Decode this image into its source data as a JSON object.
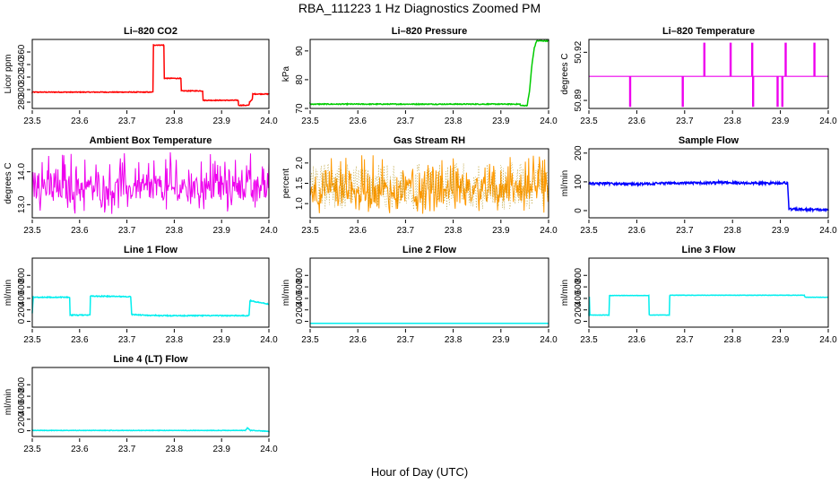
{
  "figure": {
    "title": "RBA_111223  1 Hz Diagnostics Zoomed PM",
    "xlabel": "Hour of Day (UTC)"
  },
  "chart_data": [
    {
      "type": "line",
      "title": "Li–820 CO2",
      "ylabel": "Licor ppm",
      "color": "#ff0000",
      "xlim": [
        23.5,
        24.0
      ],
      "xticks": [
        "23.5",
        "23.6",
        "23.7",
        "23.8",
        "23.9",
        "24.0"
      ],
      "ylim": [
        270,
        380
      ],
      "yticks": [
        280,
        300,
        320,
        340,
        360
      ],
      "ytick_labels": [
        "280",
        "300",
        "320",
        "340",
        "360"
      ],
      "noise": 0.6,
      "x": [
        23.5,
        23.755,
        23.756,
        23.778,
        23.779,
        23.814,
        23.815,
        23.86,
        23.861,
        23.935,
        23.936,
        23.958,
        23.959,
        23.965,
        23.966,
        24.0
      ],
      "y": [
        296,
        296,
        371,
        371,
        318,
        318,
        298,
        298,
        283,
        283,
        275,
        275,
        280,
        285,
        293,
        293
      ]
    },
    {
      "type": "line",
      "title": "Li–820 Pressure",
      "ylabel": "kPa",
      "color": "#00cc00",
      "xlim": [
        23.5,
        24.0
      ],
      "xticks": [
        "23.5",
        "23.6",
        "23.7",
        "23.8",
        "23.9",
        "24.0"
      ],
      "ylim": [
        70,
        94
      ],
      "yticks": [
        70,
        80,
        90
      ],
      "ytick_labels": [
        "70",
        "80",
        "90"
      ],
      "noise": 0.15,
      "x": [
        23.5,
        23.94,
        23.941,
        23.955,
        23.96,
        23.965,
        23.97,
        23.975,
        24.0
      ],
      "y": [
        71.5,
        71.5,
        71.0,
        71.0,
        76,
        85,
        91,
        93.5,
        93.5
      ]
    },
    {
      "type": "line",
      "title": "Li–820 Temperature",
      "ylabel": "degrees C",
      "color": "#ee00ee",
      "xlim": [
        23.5,
        24.0
      ],
      "xticks": [
        "23.5",
        "23.6",
        "23.7",
        "23.8",
        "23.9",
        "24.0"
      ],
      "ylim": [
        50.885,
        50.928
      ],
      "yticks": [
        50.89,
        50.92
      ],
      "ytick_labels": [
        "50.89",
        "50.92"
      ],
      "baseline": 50.905,
      "spikes": [
        {
          "x": 23.585,
          "y": 50.886
        },
        {
          "x": 23.695,
          "y": 50.886
        },
        {
          "x": 23.74,
          "y": 50.926
        },
        {
          "x": 23.795,
          "y": 50.926
        },
        {
          "x": 23.84,
          "y": 50.926
        },
        {
          "x": 23.842,
          "y": 50.886
        },
        {
          "x": 23.893,
          "y": 50.886
        },
        {
          "x": 23.903,
          "y": 50.886
        },
        {
          "x": 23.91,
          "y": 50.926
        },
        {
          "x": 23.97,
          "y": 50.926
        }
      ]
    },
    {
      "type": "line",
      "title": "Ambient Box Temperature",
      "ylabel": "degrees C",
      "color": "#ee00ee",
      "xlim": [
        23.5,
        24.0
      ],
      "xticks": [
        "23.5",
        "23.6",
        "23.7",
        "23.8",
        "23.9",
        "24.0"
      ],
      "ylim": [
        12.6,
        14.7
      ],
      "yticks": [
        13.0,
        14.0
      ],
      "ytick_labels": [
        "13.0",
        "14.0"
      ],
      "mean": 13.45,
      "noise_low": 12.7,
      "noise_high": 14.6
    },
    {
      "type": "line",
      "title": "Gas Stream RH",
      "ylabel": "percent",
      "color": "#ff9900",
      "xlim": [
        23.5,
        24.0
      ],
      "xticks": [
        "23.5",
        "23.6",
        "23.7",
        "23.8",
        "23.9",
        "24.0"
      ],
      "ylim": [
        0.65,
        2.35
      ],
      "yticks": [
        1.0,
        1.5,
        2.0
      ],
      "ytick_labels": [
        "1.0",
        "1.5",
        "2.0"
      ],
      "mean": 1.25,
      "noise_low": 0.75,
      "noise_high": 2.2
    },
    {
      "type": "line",
      "title": "Sample Flow",
      "ylabel": "ml/min",
      "color": "#0000ff",
      "xlim": [
        23.5,
        24.0
      ],
      "xticks": [
        "23.5",
        "23.6",
        "23.7",
        "23.8",
        "23.9",
        "24.0"
      ],
      "ylim": [
        -25,
        215
      ],
      "yticks": [
        0,
        100,
        200
      ],
      "ytick_labels": [
        "0",
        "100",
        "200"
      ],
      "noise": 4,
      "x": [
        23.5,
        23.6,
        23.65,
        23.75,
        23.77,
        23.85,
        23.915,
        23.918,
        24.0
      ],
      "y": [
        95,
        92,
        95,
        96,
        98,
        95,
        96,
        5,
        2
      ]
    },
    {
      "type": "line",
      "title": "Line 1 Flow",
      "ylabel": "ml/min",
      "color": "#00eeee",
      "xlim": [
        23.5,
        24.0
      ],
      "xticks": [
        "23.5",
        "23.6",
        "23.7",
        "23.8",
        "23.9",
        "24.0"
      ],
      "ylim": [
        -100,
        1100
      ],
      "yticks": [
        0,
        200,
        400,
        600,
        800
      ],
      "ytick_labels": [
        "0",
        "200",
        "400",
        "600",
        "800"
      ],
      "noise": 8,
      "x": [
        23.5,
        23.502,
        23.579,
        23.58,
        23.622,
        23.623,
        23.708,
        23.71,
        23.76,
        23.958,
        23.96,
        24.0
      ],
      "y": [
        150,
        420,
        420,
        110,
        110,
        440,
        430,
        120,
        100,
        100,
        360,
        300
      ]
    },
    {
      "type": "line",
      "title": "Line 2 Flow",
      "ylabel": "ml/min",
      "color": "#00eeee",
      "xlim": [
        23.5,
        24.0
      ],
      "xticks": [
        "23.5",
        "23.6",
        "23.7",
        "23.8",
        "23.9",
        "24.0"
      ],
      "ylim": [
        -100,
        1100
      ],
      "yticks": [
        0,
        200,
        400,
        600,
        800
      ],
      "ytick_labels": [
        "0",
        "200",
        "400",
        "600",
        "800"
      ],
      "noise": 0,
      "x": [
        23.5,
        24.0
      ],
      "y": [
        -35,
        -35
      ]
    },
    {
      "type": "line",
      "title": "Line 3 Flow",
      "ylabel": "ml/min",
      "color": "#00eeee",
      "xlim": [
        23.5,
        24.0
      ],
      "xticks": [
        "23.5",
        "23.6",
        "23.7",
        "23.8",
        "23.9",
        "24.0"
      ],
      "ylim": [
        -100,
        1100
      ],
      "yticks": [
        0,
        200,
        400,
        600,
        800
      ],
      "ytick_labels": [
        "0",
        "200",
        "400",
        "600",
        "800"
      ],
      "noise": 3,
      "x": [
        23.5,
        23.501,
        23.502,
        23.542,
        23.543,
        23.625,
        23.626,
        23.668,
        23.669,
        23.95,
        23.952,
        24.0
      ],
      "y": [
        100,
        430,
        110,
        110,
        450,
        450,
        110,
        110,
        455,
        455,
        420,
        420
      ]
    },
    {
      "type": "line",
      "title": "Line 4 (LT) Flow",
      "ylabel": "ml/min",
      "color": "#00eeee",
      "xlim": [
        23.5,
        24.0
      ],
      "xticks": [
        "23.5",
        "23.6",
        "23.7",
        "23.8",
        "23.9",
        "24.0"
      ],
      "ylim": [
        -100,
        1100
      ],
      "yticks": [
        0,
        200,
        400,
        600,
        800
      ],
      "ytick_labels": [
        "0",
        "200",
        "400",
        "600",
        "800"
      ],
      "noise": 4,
      "x": [
        23.5,
        23.95,
        23.955,
        23.96,
        23.965,
        24.0
      ],
      "y": [
        5,
        5,
        50,
        10,
        5,
        -10
      ]
    }
  ]
}
